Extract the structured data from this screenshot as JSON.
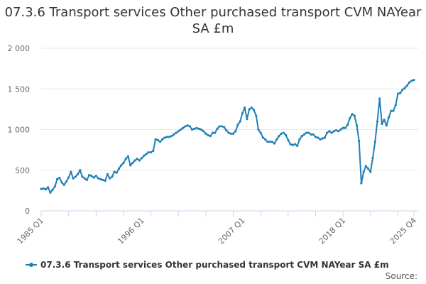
{
  "title": "07.3.6 Transport services Other purchased transport CVM NAYear SA £m",
  "source_label": "Source:",
  "colors": {
    "series": "#1f7fb8",
    "grid": "#e6e6e6",
    "axis": "#ccd6eb"
  },
  "chart_data": {
    "type": "line",
    "title": "07.3.6 Transport services Other purchased transport CVM NAYear SA £m",
    "xlabel": "",
    "ylabel": "",
    "ylim": [
      0,
      2000
    ],
    "yticks": [
      0,
      500,
      1000,
      1500,
      2000
    ],
    "ytick_labels": [
      "0",
      "500",
      "1 000",
      "1 500",
      "2 000"
    ],
    "x_start": "1985 Q1",
    "x_end": "2025 Q4",
    "xticks": [
      {
        "index": 0,
        "label": "1985 Q1"
      },
      {
        "index": 44,
        "label": "1996 Q1"
      },
      {
        "index": 88,
        "label": "2007 Q1"
      },
      {
        "index": 132,
        "label": "2018 Q1"
      },
      {
        "index": 163,
        "label": "2025 Q4"
      }
    ],
    "legend_position": "bottom",
    "series": [
      {
        "name": "07.3.6 Transport services Other purchased transport CVM NAYear SA £m",
        "values": [
          270,
          275,
          265,
          290,
          225,
          260,
          300,
          390,
          405,
          350,
          320,
          360,
          410,
          480,
          400,
          420,
          450,
          500,
          420,
          400,
          380,
          440,
          430,
          410,
          430,
          400,
          390,
          380,
          370,
          450,
          400,
          420,
          480,
          470,
          520,
          560,
          590,
          640,
          670,
          560,
          590,
          620,
          640,
          620,
          650,
          680,
          700,
          720,
          720,
          740,
          880,
          870,
          850,
          880,
          900,
          910,
          910,
          920,
          940,
          960,
          980,
          1000,
          1020,
          1040,
          1050,
          1040,
          1000,
          1010,
          1020,
          1010,
          1000,
          980,
          950,
          930,
          920,
          960,
          960,
          1010,
          1040,
          1040,
          1030,
          990,
          960,
          950,
          950,
          980,
          1060,
          1100,
          1200,
          1270,
          1130,
          1250,
          1270,
          1240,
          1170,
          1000,
          960,
          900,
          880,
          850,
          850,
          850,
          830,
          880,
          920,
          950,
          960,
          930,
          870,
          820,
          810,
          820,
          800,
          880,
          920,
          940,
          960,
          960,
          940,
          940,
          910,
          900,
          880,
          890,
          900,
          960,
          980,
          960,
          980,
          990,
          980,
          1000,
          1020,
          1020,
          1060,
          1140,
          1190,
          1170,
          1050,
          860,
          340,
          480,
          550,
          520,
          480,
          650,
          850,
          1100,
          1380,
          1070,
          1120,
          1050,
          1150,
          1230,
          1230,
          1300,
          1440,
          1450,
          1490,
          1510,
          1540,
          1580,
          1600,
          1610
        ]
      }
    ]
  }
}
